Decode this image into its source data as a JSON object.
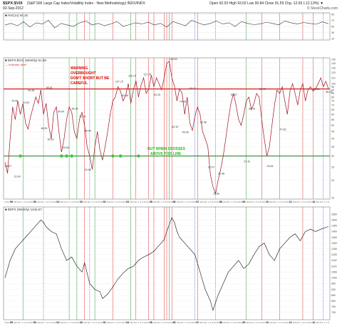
{
  "header": {
    "symbol": "$SPX:$VIX",
    "description": "(S&P 500 Large Cap Index/Volatility Index - New Methodology) INDX/INDX",
    "date": "02-Sep-2012",
    "ohlc": "Open 92.03  High 93.03  Low 90.84  Close 91.59  Chg -12.65 (-12.13%) ▼",
    "source": "© StockCharts.com"
  },
  "panels": {
    "rsi_label": "■ RSI(14) 59.35",
    "main_label": "■ $SPX:$VIX (Weekly) 91.59",
    "main_sublabel": "— Indicator label",
    "spx_label": "■ $SPX (Weekly) 1442.67"
  },
  "annotations": {
    "warning": [
      "WARNING",
      "OVERBOUGHT",
      "DON'T SHORT BUT BE",
      "CAREFUL"
    ],
    "buy": [
      "BUY WHEN CROSSES",
      "ABOVE THIS LINE"
    ]
  },
  "colors": {
    "warning_line": "#d42020",
    "buy_line": "#1f7a1f",
    "warning_text": "#e00000",
    "buy_text": "#18c018",
    "ratio_line": "#a01020",
    "red_vline": "#e03030",
    "blue_vline": "#3a3ad0",
    "green_vline": "#2a9a2a",
    "dot": "#33cc33"
  },
  "chart_data": [
    {
      "type": "line",
      "panel": "rsi",
      "title": "RSI(14) 59.35",
      "ylim": [
        10,
        90
      ],
      "y_ticks": [
        10,
        30,
        50,
        70,
        90
      ],
      "values": [
        55,
        60,
        52,
        65,
        48,
        62,
        58,
        70,
        45,
        60,
        55,
        50,
        62,
        68,
        55,
        60,
        52,
        58,
        66,
        50,
        56,
        62,
        58,
        64,
        55,
        60,
        48,
        66,
        59,
        52,
        70,
        62,
        55,
        60,
        68,
        58,
        62,
        50,
        66,
        60,
        56,
        58,
        64,
        60,
        55,
        68,
        62,
        58,
        63,
        60,
        57,
        65,
        59
      ]
    },
    {
      "type": "line",
      "panel": "ratio",
      "title": "$SPX:$VIX (Weekly) 91.59",
      "scale": "log",
      "ylim": [
        15,
        150
      ],
      "y_ticks": [
        15,
        20,
        25,
        30,
        35,
        40,
        45,
        50,
        55,
        60,
        65,
        70,
        75,
        80,
        85,
        90,
        95,
        100,
        110,
        120,
        130,
        140,
        150
      ],
      "warning_level": 91.5,
      "buy_level": 30,
      "x_ticks": [
        "O",
        "N",
        "D",
        "99",
        "F",
        "M",
        "A",
        "M",
        "J",
        "J",
        "A",
        "S",
        "O",
        "N",
        "D",
        "00",
        "F",
        "M",
        "A",
        "M",
        "J",
        "J",
        "A",
        "S",
        "O",
        "N",
        "D",
        "01",
        "F",
        "M",
        "A",
        "M",
        "J",
        "J",
        "A",
        "S",
        "O",
        "N",
        "D",
        "02",
        "F",
        "M",
        "A",
        "M",
        "J",
        "J",
        "A",
        "S",
        "O",
        "N",
        "D",
        "03",
        "F",
        "M",
        "A",
        "M",
        "J",
        "J",
        "A",
        "S",
        "O",
        "N",
        "D",
        "04",
        "F",
        "M",
        "A",
        "M",
        "J",
        "J",
        "A",
        "S",
        "O",
        "N",
        "D",
        "05",
        "F",
        "M",
        "A",
        "M",
        "J",
        "J",
        "A",
        "S",
        "O",
        "N",
        "D",
        "06",
        "F",
        "M",
        "A",
        "M",
        "J",
        "J",
        "A",
        "S",
        "O",
        "N",
        "D",
        "07",
        "F",
        "M",
        "A",
        "M",
        "J",
        "J",
        "A",
        "S",
        "O",
        "N",
        "D",
        "08",
        "F",
        "M",
        "A",
        "M",
        "J",
        "J",
        "A",
        "S",
        "O",
        "N",
        "D",
        "09",
        "F",
        "M",
        "A",
        "M",
        "J",
        "J",
        "A",
        "S",
        "O",
        "N",
        "D",
        "10",
        "F",
        "M",
        "A",
        "M",
        "J",
        "J",
        "A",
        "S",
        "O",
        "N",
        "D",
        "11",
        "F",
        "M",
        "A",
        "M",
        "J",
        "J",
        "A",
        "S",
        "O",
        "N",
        "D",
        "12",
        "F",
        "M",
        "A",
        "M",
        "J",
        "J",
        "A",
        "S"
      ],
      "points": [
        [
          0,
          27.0
        ],
        [
          2,
          22.5
        ],
        [
          4,
          40
        ],
        [
          6,
          68
        ],
        [
          8,
          55
        ],
        [
          10,
          75
        ],
        [
          12,
          60
        ],
        [
          14,
          72
        ],
        [
          16,
          52
        ],
        [
          18,
          47
        ],
        [
          20,
          58
        ],
        [
          22,
          68
        ],
        [
          24,
          80
        ],
        [
          26,
          72
        ],
        [
          28,
          90
        ],
        [
          30,
          60
        ],
        [
          32,
          72
        ],
        [
          34,
          50
        ],
        [
          36,
          40
        ],
        [
          38,
          62
        ],
        [
          40,
          68
        ],
        [
          42,
          45
        ],
        [
          44,
          32
        ],
        [
          46,
          40
        ],
        [
          48,
          55
        ],
        [
          50,
          68
        ],
        [
          52,
          62
        ],
        [
          54,
          45
        ],
        [
          56,
          40
        ],
        [
          58,
          55
        ],
        [
          60,
          62
        ],
        [
          62,
          50
        ],
        [
          64,
          35
        ],
        [
          66,
          30
        ],
        [
          68,
          24
        ],
        [
          70,
          35
        ],
        [
          72,
          45
        ],
        [
          74,
          33
        ],
        [
          76,
          28
        ],
        [
          78,
          35
        ],
        [
          80,
          45
        ],
        [
          82,
          60
        ],
        [
          84,
          75
        ],
        [
          86,
          80
        ],
        [
          88,
          95
        ],
        [
          90,
          88
        ],
        [
          92,
          75
        ],
        [
          94,
          82
        ],
        [
          96,
          100
        ],
        [
          98,
          72
        ],
        [
          100,
          90
        ],
        [
          102,
          105
        ],
        [
          104,
          80
        ],
        [
          106,
          98
        ],
        [
          108,
          110
        ],
        [
          110,
          85
        ],
        [
          112,
          92
        ],
        [
          114,
          115
        ],
        [
          116,
          95
        ],
        [
          118,
          110
        ],
        [
          120,
          100
        ],
        [
          122,
          90
        ],
        [
          124,
          110
        ],
        [
          126,
          140
        ],
        [
          128,
          145
        ],
        [
          130,
          110
        ],
        [
          132,
          96
        ],
        [
          134,
          75
        ],
        [
          136,
          92
        ],
        [
          138,
          85
        ],
        [
          140,
          60
        ],
        [
          142,
          80
        ],
        [
          144,
          52
        ],
        [
          146,
          46
        ],
        [
          148,
          58
        ],
        [
          150,
          68
        ],
        [
          152,
          60
        ],
        [
          154,
          45
        ],
        [
          156,
          40
        ],
        [
          158,
          35
        ],
        [
          160,
          22
        ],
        [
          162,
          18
        ],
        [
          164,
          16
        ],
        [
          166,
          20
        ],
        [
          168,
          24
        ],
        [
          170,
          30
        ],
        [
          172,
          40
        ],
        [
          174,
          55
        ],
        [
          176,
          72
        ],
        [
          178,
          85
        ],
        [
          180,
          70
        ],
        [
          182,
          55
        ],
        [
          184,
          50
        ],
        [
          186,
          60
        ],
        [
          188,
          75
        ],
        [
          190,
          80
        ],
        [
          192,
          65
        ],
        [
          194,
          72
        ],
        [
          196,
          85
        ],
        [
          198,
          80
        ],
        [
          200,
          55
        ],
        [
          202,
          40
        ],
        [
          204,
          30
        ],
        [
          206,
          35
        ],
        [
          208,
          50
        ],
        [
          210,
          70
        ],
        [
          212,
          90
        ],
        [
          214,
          85
        ],
        [
          216,
          95
        ],
        [
          218,
          75
        ],
        [
          220,
          60
        ],
        [
          222,
          88
        ],
        [
          224,
          100
        ],
        [
          226,
          85
        ],
        [
          228,
          70
        ],
        [
          230,
          90
        ],
        [
          232,
          100
        ],
        [
          234,
          75
        ],
        [
          236,
          90
        ],
        [
          238,
          95
        ],
        [
          240,
          88
        ],
        [
          242,
          92
        ],
        [
          244,
          100
        ],
        [
          246,
          110
        ],
        [
          248,
          95
        ],
        [
          250,
          104
        ],
        [
          252,
          91.59
        ]
      ],
      "point_labels": [
        {
          "text": "26.97",
          "x": 0,
          "y": 25
        },
        {
          "text": "22.40",
          "x": 7,
          "y": 21
        },
        {
          "text": "75.42",
          "x": 5,
          "y": 74
        },
        {
          "text": "91.45",
          "x": 18,
          "y": 88
        },
        {
          "text": "74.63",
          "x": 14,
          "y": 72
        },
        {
          "text": "95.51",
          "x": 32,
          "y": 92
        },
        {
          "text": "48.55",
          "x": 28,
          "y": 47
        },
        {
          "text": "39.53",
          "x": 33,
          "y": 39
        },
        {
          "text": "64.64",
          "x": 41,
          "y": 62
        },
        {
          "text": "34.64",
          "x": 45,
          "y": 34
        },
        {
          "text": "65.34",
          "x": 52,
          "y": 65
        },
        {
          "text": "57.76",
          "x": 58,
          "y": 57
        },
        {
          "text": "24.46",
          "x": 62,
          "y": 23.5
        },
        {
          "text": "46.45",
          "x": 62,
          "y": 45
        },
        {
          "text": "107.15",
          "x": 86,
          "y": 102
        },
        {
          "text": "84.48",
          "x": 91,
          "y": 81
        },
        {
          "text": "115.72",
          "x": 96,
          "y": 112
        },
        {
          "text": "117.28",
          "x": 108,
          "y": 115
        },
        {
          "text": "84.15",
          "x": 116,
          "y": 82
        },
        {
          "text": "145.54",
          "x": 128,
          "y": 148
        },
        {
          "text": "74.89",
          "x": 136,
          "y": 73
        },
        {
          "text": "93.17",
          "x": 144,
          "y": 91
        },
        {
          "text": "49.19",
          "x": 130,
          "y": 48
        },
        {
          "text": "45.06",
          "x": 138,
          "y": 44
        },
        {
          "text": "53.48",
          "x": 152,
          "y": 52
        },
        {
          "text": "25.70",
          "x": 158,
          "y": 24.5
        },
        {
          "text": "15.66",
          "x": 162,
          "y": 15.8
        },
        {
          "text": "22.46",
          "x": 166,
          "y": 22
        },
        {
          "text": "84.67",
          "x": 176,
          "y": 82
        },
        {
          "text": "27.42",
          "x": 186,
          "y": 27
        },
        {
          "text": "65.75",
          "x": 190,
          "y": 65
        },
        {
          "text": "92.49",
          "x": 198,
          "y": 90
        },
        {
          "text": "25.64",
          "x": 204,
          "y": 25
        },
        {
          "text": "47.83",
          "x": 214,
          "y": 46
        },
        {
          "text": "91.59",
          "x": 240,
          "y": 90
        },
        {
          "text": "88.03",
          "x": 250,
          "y": 86
        }
      ],
      "buy_marker_x": [
        12,
        44,
        48,
        52,
        84,
        90,
        104
      ]
    },
    {
      "type": "line",
      "panel": "spx",
      "title": "$SPX (Weekly) 1442.67",
      "ylim": [
        650,
        1600
      ],
      "y_ticks": [
        700,
        750,
        800,
        850,
        900,
        950,
        1000,
        1050,
        1100,
        1150,
        1200,
        1250,
        1300,
        1350,
        1400,
        1450,
        1500,
        1550
      ],
      "points": [
        [
          0,
          1000
        ],
        [
          4,
          1150
        ],
        [
          8,
          1250
        ],
        [
          12,
          1300
        ],
        [
          16,
          1350
        ],
        [
          20,
          1400
        ],
        [
          24,
          1450
        ],
        [
          28,
          1500
        ],
        [
          30,
          1480
        ],
        [
          32,
          1440
        ],
        [
          36,
          1400
        ],
        [
          40,
          1380
        ],
        [
          44,
          1250
        ],
        [
          48,
          1150
        ],
        [
          52,
          1180
        ],
        [
          56,
          1100
        ],
        [
          60,
          1050
        ],
        [
          62,
          1130
        ],
        [
          66,
          950
        ],
        [
          70,
          900
        ],
        [
          74,
          880
        ],
        [
          76,
          820
        ],
        [
          80,
          860
        ],
        [
          84,
          920
        ],
        [
          88,
          990
        ],
        [
          92,
          1040
        ],
        [
          96,
          1080
        ],
        [
          100,
          1100
        ],
        [
          104,
          1150
        ],
        [
          108,
          1180
        ],
        [
          112,
          1200
        ],
        [
          116,
          1230
        ],
        [
          120,
          1280
        ],
        [
          124,
          1330
        ],
        [
          126,
          1400
        ],
        [
          128,
          1460
        ],
        [
          130,
          1520
        ],
        [
          132,
          1480
        ],
        [
          134,
          1400
        ],
        [
          136,
          1350
        ],
        [
          140,
          1300
        ],
        [
          144,
          1250
        ],
        [
          148,
          1200
        ],
        [
          152,
          1050
        ],
        [
          156,
          900
        ],
        [
          160,
          800
        ],
        [
          162,
          720
        ],
        [
          166,
          850
        ],
        [
          170,
          950
        ],
        [
          174,
          1050
        ],
        [
          178,
          1100
        ],
        [
          182,
          1150
        ],
        [
          186,
          1080
        ],
        [
          190,
          1120
        ],
        [
          194,
          1200
        ],
        [
          198,
          1270
        ],
        [
          202,
          1300
        ],
        [
          206,
          1200
        ],
        [
          210,
          1150
        ],
        [
          214,
          1250
        ],
        [
          218,
          1300
        ],
        [
          222,
          1350
        ],
        [
          226,
          1380
        ],
        [
          230,
          1320
        ],
        [
          234,
          1400
        ],
        [
          238,
          1420
        ],
        [
          242,
          1400
        ],
        [
          246,
          1420
        ],
        [
          252,
          1442.67
        ]
      ]
    }
  ]
}
